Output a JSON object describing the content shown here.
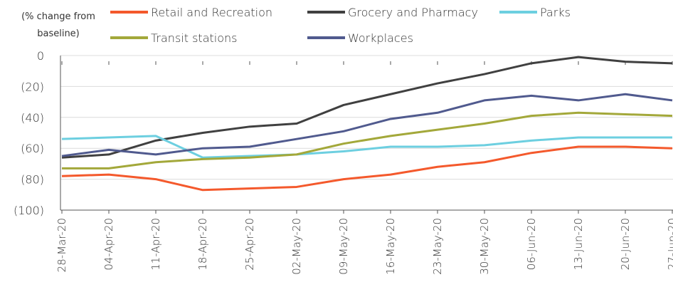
{
  "chart_data": {
    "type": "line",
    "y_label": "(% change from baseline)",
    "categories": [
      "28-Mar-20",
      "04-Apr-20",
      "11-Apr-20",
      "18-Apr-20",
      "25-Apr-20",
      "02-May-20",
      "09-May-20",
      "16-May-20",
      "23-May-20",
      "30-May-20",
      "06-Jun-20",
      "13-Jun-20",
      "20-Jun-20",
      "27-Jun-20"
    ],
    "series": [
      {
        "name": "Retail and Recreation",
        "color": "#f4592c",
        "values": [
          -78,
          -77,
          -80,
          -87,
          -86,
          -85,
          -80,
          -77,
          -72,
          -69,
          -63,
          -59,
          -59,
          -60
        ]
      },
      {
        "name": "Grocery and Pharmacy",
        "color": "#404040",
        "values": [
          -66,
          -64,
          -55,
          -50,
          -46,
          -44,
          -32,
          -25,
          -18,
          -12,
          -5,
          -1,
          -4,
          -5
        ]
      },
      {
        "name": "Parks",
        "color": "#6dcfe0",
        "values": [
          -54,
          -53,
          -52,
          -66,
          -65,
          -64,
          -62,
          -59,
          -59,
          -58,
          -55,
          -53,
          -53,
          -53
        ]
      },
      {
        "name": "Transit stations",
        "color": "#a3a83a",
        "values": [
          -73,
          -73,
          -69,
          -67,
          -66,
          -64,
          -57,
          -52,
          -48,
          -44,
          -39,
          -37,
          -38,
          -39
        ]
      },
      {
        "name": "Workplaces",
        "color": "#505a8e",
        "values": [
          -65,
          -61,
          -64,
          -60,
          -59,
          -54,
          -49,
          -41,
          -37,
          -29,
          -26,
          -29,
          -25,
          -29
        ]
      }
    ],
    "ylim": [
      -100,
      0
    ],
    "yticks": [
      0,
      {
        "value": -20,
        "label": "(20)"
      },
      {
        "value": -40,
        "label": "(40)"
      },
      {
        "value": -60,
        "label": "(60)"
      },
      {
        "value": -80,
        "label": "(80)"
      },
      {
        "value": -100,
        "label": "(100)"
      }
    ],
    "grid": true
  }
}
